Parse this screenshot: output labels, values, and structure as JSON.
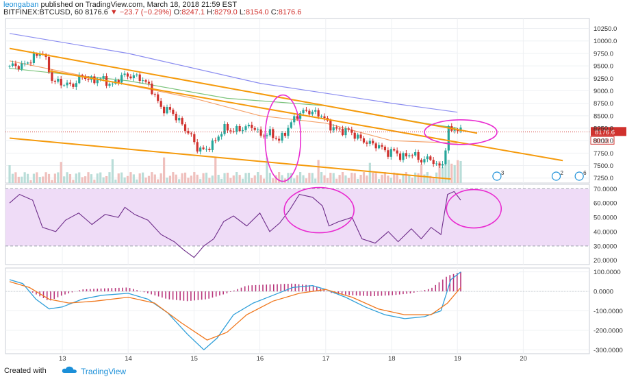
{
  "header": {
    "author": "leongaban",
    "published": "published on TradingView.com, March 18, 2018 21:59 EST",
    "symbol": "BITFINEX:BTCUSD, 60",
    "last": "8176.6",
    "change": "−23.7 (−0.29%)",
    "o_label": "O:",
    "o": "8247.1",
    "h_label": "H:",
    "h": "8279.0",
    "l_label": "L:",
    "l": "8154.0",
    "c_label": "C:",
    "c": "8176.6"
  },
  "footer": {
    "created_with": "Created with",
    "brand": "TradingView"
  },
  "colors": {
    "up": "#26a69a",
    "down": "#d0312d",
    "trend": "#f59a0b",
    "annot": "#e92ad0",
    "ma_blue": "#8a8cf0",
    "ma_green": "#7cc47c",
    "ma_orange": "#f5a26a",
    "rsi": "#6e2d8a",
    "rsi_band": "#efdcf7",
    "macd": "#2f9fd9",
    "signal": "#f0781e",
    "hist": "#b8347a"
  },
  "price_label": "8176.6",
  "countdown": "00:10",
  "x_ticks": [
    "13",
    "14",
    "15",
    "16",
    "17",
    "18",
    "19",
    "20"
  ],
  "price_ticks": [
    "10250.0",
    "10000.0",
    "9750.0",
    "9500.0",
    "9250.0",
    "9000.0",
    "8750.0",
    "8500.0",
    "8250.0",
    "8000.0",
    "7750.0",
    "7500.0",
    "7250.0"
  ],
  "rsi_ticks": [
    "70.0000",
    "60.0000",
    "50.0000",
    "40.0000",
    "30.0000",
    "20.0000"
  ],
  "macd_ticks": [
    "100.0000",
    "0.0000",
    "-100.0000",
    "-200.0000",
    "-300.0000"
  ],
  "event_labels": [
    "3",
    "2",
    "6"
  ],
  "chart_data": [
    {
      "type": "candlestick",
      "title": "BITFINEX:BTCUSD, 60",
      "ylim": [
        7150,
        10450
      ],
      "x_ticks": [
        "13",
        "14",
        "15",
        "16",
        "17",
        "18",
        "19",
        "20"
      ],
      "close_path": [
        [
          12.4,
          9500
        ],
        [
          12.55,
          9650
        ],
        [
          12.7,
          9800
        ],
        [
          12.85,
          9200
        ],
        [
          13.0,
          9150
        ],
        [
          13.15,
          9100
        ],
        [
          13.3,
          9300
        ],
        [
          13.45,
          9200
        ],
        [
          13.6,
          9250
        ],
        [
          13.75,
          9100
        ],
        [
          13.9,
          9300
        ],
        [
          14.05,
          9300
        ],
        [
          14.2,
          9250
        ],
        [
          14.35,
          9050
        ],
        [
          14.5,
          8650
        ],
        [
          14.65,
          8600
        ],
        [
          14.8,
          8350
        ],
        [
          14.95,
          8100
        ],
        [
          15.05,
          7850
        ],
        [
          15.15,
          7800
        ],
        [
          15.3,
          7950
        ],
        [
          15.45,
          8250
        ],
        [
          15.6,
          8200
        ],
        [
          15.75,
          8250
        ],
        [
          15.9,
          8300
        ],
        [
          16.0,
          8100
        ],
        [
          16.15,
          8150
        ],
        [
          16.3,
          8000
        ],
        [
          16.45,
          8300
        ],
        [
          16.55,
          8500
        ],
        [
          16.7,
          8600
        ],
        [
          16.85,
          8550
        ],
        [
          16.95,
          8500
        ],
        [
          17.05,
          8300
        ],
        [
          17.2,
          8200
        ],
        [
          17.35,
          8200
        ],
        [
          17.5,
          8050
        ],
        [
          17.65,
          7950
        ],
        [
          17.8,
          7900
        ],
        [
          17.95,
          7750
        ],
        [
          18.05,
          7800
        ],
        [
          18.15,
          7650
        ],
        [
          18.3,
          7750
        ],
        [
          18.45,
          7600
        ],
        [
          18.6,
          7650
        ],
        [
          18.7,
          7450
        ],
        [
          18.8,
          7600
        ],
        [
          18.85,
          8200
        ],
        [
          18.95,
          8250
        ],
        [
          19.05,
          8176.6
        ]
      ],
      "trendlines": [
        {
          "from": [
            12.2,
            9850
          ],
          "to": [
            19.3,
            8150
          ]
        },
        {
          "from": [
            12.8,
            9400
          ],
          "to": [
            20.6,
            7600
          ]
        },
        {
          "from": [
            12.2,
            8050
          ],
          "to": [
            18.9,
            7230
          ]
        }
      ],
      "moving_averages": [
        {
          "color": "#8a8cf0",
          "points": [
            [
              12.2,
              10150
            ],
            [
              14.0,
              9750
            ],
            [
              16.0,
              9150
            ],
            [
              18.0,
              8750
            ],
            [
              19.0,
              8570
            ]
          ]
        },
        {
          "color": "#7cc47c",
          "points": [
            [
              12.2,
              9450
            ],
            [
              14.0,
              9200
            ],
            [
              15.5,
              8850
            ],
            [
              17.0,
              8700
            ],
            [
              18.5,
              8350
            ],
            [
              19.0,
              8250
            ]
          ]
        },
        {
          "color": "#f5a26a",
          "points": [
            [
              12.2,
              9600
            ],
            [
              13.5,
              9250
            ],
            [
              15.0,
              8850
            ],
            [
              16.0,
              8500
            ],
            [
              17.0,
              8350
            ],
            [
              18.0,
              8000
            ],
            [
              19.0,
              7950
            ]
          ]
        }
      ]
    },
    {
      "type": "line",
      "title": "RSI",
      "ylim": [
        17,
        73
      ],
      "bands": [
        30,
        70
      ],
      "points": [
        [
          12.2,
          60
        ],
        [
          12.35,
          66
        ],
        [
          12.55,
          62
        ],
        [
          12.7,
          43
        ],
        [
          12.9,
          40
        ],
        [
          13.05,
          48
        ],
        [
          13.25,
          53
        ],
        [
          13.45,
          45
        ],
        [
          13.65,
          52
        ],
        [
          13.85,
          50
        ],
        [
          13.95,
          57
        ],
        [
          14.1,
          52
        ],
        [
          14.3,
          48
        ],
        [
          14.5,
          38
        ],
        [
          14.7,
          33
        ],
        [
          14.85,
          27
        ],
        [
          15.0,
          22
        ],
        [
          15.15,
          30
        ],
        [
          15.3,
          35
        ],
        [
          15.45,
          47
        ],
        [
          15.6,
          51
        ],
        [
          15.8,
          44
        ],
        [
          16.0,
          53
        ],
        [
          16.15,
          40
        ],
        [
          16.3,
          46
        ],
        [
          16.45,
          55
        ],
        [
          16.6,
          66
        ],
        [
          16.8,
          64
        ],
        [
          16.95,
          58
        ],
        [
          17.05,
          44
        ],
        [
          17.2,
          47
        ],
        [
          17.4,
          50
        ],
        [
          17.55,
          35
        ],
        [
          17.75,
          32
        ],
        [
          17.95,
          40
        ],
        [
          18.1,
          33
        ],
        [
          18.3,
          42
        ],
        [
          18.45,
          35
        ],
        [
          18.6,
          43
        ],
        [
          18.75,
          38
        ],
        [
          18.85,
          66
        ],
        [
          18.95,
          68
        ],
        [
          19.05,
          62
        ]
      ]
    },
    {
      "type": "line",
      "title": "MACD",
      "ylim": [
        -320,
        120
      ],
      "macd": [
        [
          12.2,
          60
        ],
        [
          12.4,
          40
        ],
        [
          12.6,
          -40
        ],
        [
          12.8,
          -90
        ],
        [
          13.0,
          -80
        ],
        [
          13.3,
          -40
        ],
        [
          13.6,
          -20
        ],
        [
          14.0,
          -10
        ],
        [
          14.3,
          -40
        ],
        [
          14.6,
          -110
        ],
        [
          14.9,
          -220
        ],
        [
          15.15,
          -300
        ],
        [
          15.35,
          -240
        ],
        [
          15.6,
          -120
        ],
        [
          15.9,
          -60
        ],
        [
          16.2,
          -20
        ],
        [
          16.5,
          20
        ],
        [
          16.8,
          30
        ],
        [
          17.0,
          10
        ],
        [
          17.3,
          -30
        ],
        [
          17.6,
          -80
        ],
        [
          17.9,
          -120
        ],
        [
          18.2,
          -140
        ],
        [
          18.5,
          -130
        ],
        [
          18.75,
          -100
        ],
        [
          18.9,
          60
        ],
        [
          19.05,
          100
        ]
      ],
      "signal": [
        [
          12.2,
          50
        ],
        [
          12.5,
          20
        ],
        [
          12.8,
          -40
        ],
        [
          13.1,
          -60
        ],
        [
          13.5,
          -50
        ],
        [
          14.0,
          -30
        ],
        [
          14.4,
          -60
        ],
        [
          14.8,
          -160
        ],
        [
          15.2,
          -250
        ],
        [
          15.5,
          -210
        ],
        [
          15.8,
          -120
        ],
        [
          16.2,
          -50
        ],
        [
          16.6,
          -10
        ],
        [
          17.0,
          10
        ],
        [
          17.4,
          -30
        ],
        [
          17.8,
          -90
        ],
        [
          18.2,
          -120
        ],
        [
          18.6,
          -120
        ],
        [
          18.85,
          -60
        ],
        [
          19.05,
          20
        ]
      ],
      "histogram": [
        [
          12.6,
          -15
        ],
        [
          12.8,
          -50
        ],
        [
          13.0,
          -20
        ],
        [
          13.3,
          10
        ],
        [
          13.6,
          15
        ],
        [
          14.0,
          20
        ],
        [
          14.3,
          -10
        ],
        [
          14.6,
          -40
        ],
        [
          14.9,
          -50
        ],
        [
          15.2,
          -40
        ],
        [
          15.5,
          -10
        ],
        [
          15.8,
          30
        ],
        [
          16.1,
          35
        ],
        [
          16.5,
          40
        ],
        [
          16.8,
          30
        ],
        [
          17.1,
          -10
        ],
        [
          17.4,
          -20
        ],
        [
          17.7,
          -25
        ],
        [
          18.0,
          -20
        ],
        [
          18.3,
          -10
        ],
        [
          18.6,
          15
        ],
        [
          18.85,
          80
        ],
        [
          19.05,
          100
        ]
      ]
    }
  ]
}
